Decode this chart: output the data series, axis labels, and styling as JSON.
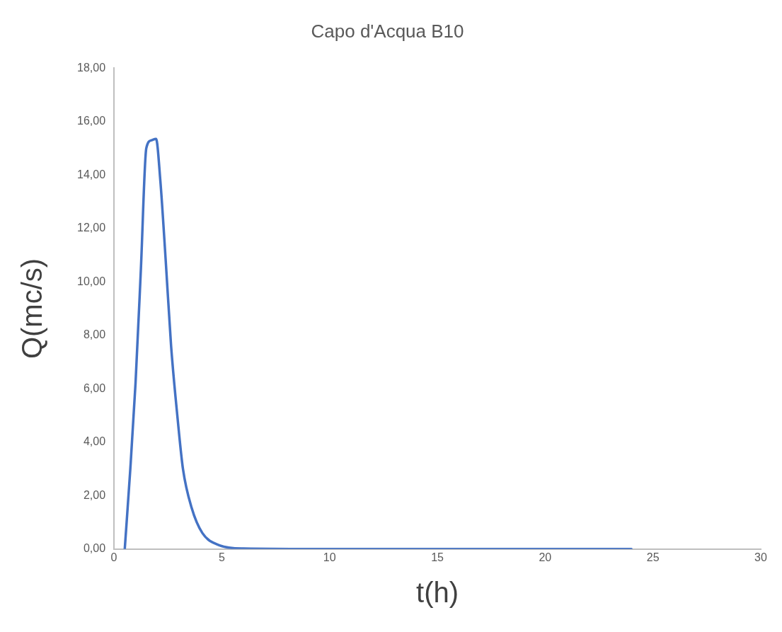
{
  "chart_data": {
    "type": "line",
    "title": "Capo d'Acqua B10",
    "xlabel": "t(h)",
    "ylabel": "Q(mc/s)",
    "x": [
      0.5,
      0.75,
      1.0,
      1.25,
      1.5,
      1.75,
      1.95,
      2.15,
      2.4,
      2.65,
      2.95,
      3.2,
      3.6,
      4.1,
      4.9,
      6,
      10,
      15,
      20,
      24
    ],
    "series": [
      {
        "color": "#4472c4",
        "values": [
          0,
          2.9,
          6.2,
          10.5,
          15.0,
          15.3,
          15.35,
          13.8,
          10.8,
          7.6,
          4.9,
          3.0,
          1.55,
          0.6,
          0.14,
          0.02,
          0,
          0,
          0,
          0
        ]
      }
    ],
    "xlim": [
      0,
      30
    ],
    "xticks": [
      0,
      5,
      10,
      15,
      20,
      25,
      30
    ],
    "ylim": [
      0,
      18
    ],
    "yticks": [
      {
        "value": 0,
        "label": "0,00"
      },
      {
        "value": 2,
        "label": "2,00"
      },
      {
        "value": 4,
        "label": "4,00"
      },
      {
        "value": 6,
        "label": "6,00"
      },
      {
        "value": 8,
        "label": "8,00"
      },
      {
        "value": 10,
        "label": "10,00"
      },
      {
        "value": 12,
        "label": "12,00"
      },
      {
        "value": 14,
        "label": "14,00"
      },
      {
        "value": 16,
        "label": "16,00"
      },
      {
        "value": 18,
        "label": "18,00"
      }
    ],
    "grid": false,
    "legend": false,
    "marker": "none",
    "line_style": "solid"
  }
}
